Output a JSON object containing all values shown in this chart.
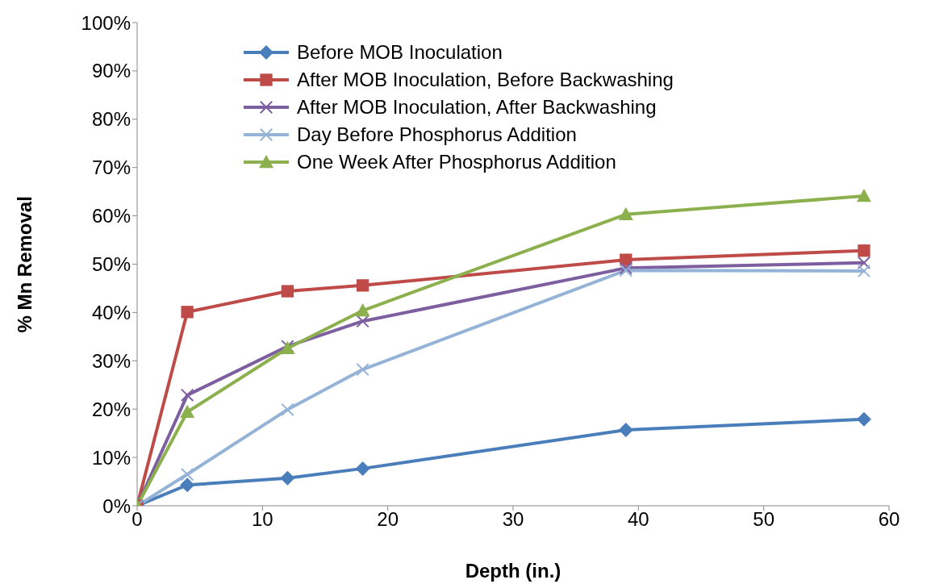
{
  "chart_data": {
    "type": "line",
    "xlabel": "Depth (in.)",
    "ylabel": "% Mn Removal",
    "xlim": [
      0,
      60
    ],
    "xticks": [
      0,
      10,
      20,
      30,
      40,
      50,
      60
    ],
    "ylim": [
      0,
      100
    ],
    "yticks": [
      {
        "value": 0,
        "label": "0%"
      },
      {
        "value": 10,
        "label": "10%"
      },
      {
        "value": 20,
        "label": "20%"
      },
      {
        "value": 30,
        "label": "30%"
      },
      {
        "value": 40,
        "label": "40%"
      },
      {
        "value": 50,
        "label": "50%"
      },
      {
        "value": 60,
        "label": "60%"
      },
      {
        "value": 70,
        "label": "70%"
      },
      {
        "value": 80,
        "label": "80%"
      },
      {
        "value": 90,
        "label": "90%"
      },
      {
        "value": 100,
        "label": "100%"
      }
    ],
    "x": [
      0,
      4,
      12,
      18,
      39,
      58
    ],
    "grid": false,
    "legend": "top left",
    "line_style": "solid",
    "series": [
      {
        "name": "Before MOB Inoculation",
        "color": "#4a7ebb",
        "marker": "diamond",
        "values": [
          0,
          4.3,
          5.7,
          7.7,
          15.7,
          17.9
        ]
      },
      {
        "name": "After MOB Inoculation, Before Backwashing",
        "color": "#be4b48",
        "marker": "square",
        "values": [
          0,
          40.1,
          44.4,
          45.6,
          50.9,
          52.8
        ]
      },
      {
        "name": "After MOB Inoculation, After Backwashing",
        "color": "#7d5fa0",
        "marker": "cross",
        "values": [
          0,
          22.9,
          33.0,
          38.2,
          49.2,
          50.3
        ]
      },
      {
        "name": "Day Before Phosphorus Addition",
        "color": "#95b3d7",
        "marker": "cross",
        "values": [
          0,
          6.5,
          19.9,
          28.2,
          48.7,
          48.6
        ]
      },
      {
        "name": "One Week After Phosphorus Addition",
        "color": "#8cb04e",
        "marker": "triangle",
        "values": [
          0,
          19.4,
          32.6,
          40.4,
          60.3,
          64.1
        ]
      }
    ]
  }
}
